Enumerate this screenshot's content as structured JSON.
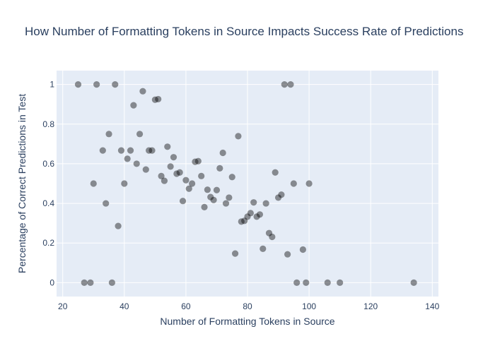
{
  "chart_data": {
    "type": "scatter",
    "title": "How Number of Formatting Tokens in Source Impacts Success Rate of Predictions",
    "xlabel": "Number of Formatting Tokens in Source",
    "ylabel": "Percentage of Correct Predictions in Test",
    "xlim": [
      18,
      142
    ],
    "ylim": [
      -0.07,
      1.07
    ],
    "xticks": [
      20,
      40,
      60,
      80,
      100,
      120,
      140
    ],
    "yticks": [
      0,
      0.2,
      0.4,
      0.6,
      0.8,
      1
    ],
    "ytick_labels": [
      "0",
      "0.2",
      "0.4",
      "0.6",
      "0.8",
      "1"
    ],
    "grid": true,
    "legend": "none",
    "colors": {
      "plot_background": "#e5ecf6",
      "grid": "#ffffff",
      "marker": "#000000",
      "text": "#2a3f5f"
    },
    "marker_opacity": 0.42,
    "points": [
      [
        25,
        1.0
      ],
      [
        27,
        0.0
      ],
      [
        29,
        0.0
      ],
      [
        30,
        0.5
      ],
      [
        31,
        1.0
      ],
      [
        33,
        0.667
      ],
      [
        34,
        0.4
      ],
      [
        35,
        0.75
      ],
      [
        36,
        0.0
      ],
      [
        37,
        1.0
      ],
      [
        38,
        0.286
      ],
      [
        39,
        0.667
      ],
      [
        40,
        0.5
      ],
      [
        41,
        0.625
      ],
      [
        42,
        0.667
      ],
      [
        43,
        0.895
      ],
      [
        44,
        0.6
      ],
      [
        45,
        0.75
      ],
      [
        46,
        0.966
      ],
      [
        47,
        0.571
      ],
      [
        48,
        0.667
      ],
      [
        49,
        0.667
      ],
      [
        50,
        0.923
      ],
      [
        51,
        0.926
      ],
      [
        52,
        0.538
      ],
      [
        53,
        0.514
      ],
      [
        54,
        0.686
      ],
      [
        55,
        0.586
      ],
      [
        56,
        0.633
      ],
      [
        57,
        0.55
      ],
      [
        58,
        0.556
      ],
      [
        59,
        0.412
      ],
      [
        60,
        0.517
      ],
      [
        61,
        0.474
      ],
      [
        62,
        0.5
      ],
      [
        63,
        0.61
      ],
      [
        64,
        0.613
      ],
      [
        65,
        0.538
      ],
      [
        66,
        0.381
      ],
      [
        67,
        0.469
      ],
      [
        68,
        0.432
      ],
      [
        69,
        0.417
      ],
      [
        70,
        0.467
      ],
      [
        71,
        0.577
      ],
      [
        72,
        0.655
      ],
      [
        73,
        0.4
      ],
      [
        74,
        0.429
      ],
      [
        75,
        0.533
      ],
      [
        76,
        0.147
      ],
      [
        77,
        0.739
      ],
      [
        78,
        0.308
      ],
      [
        79,
        0.312
      ],
      [
        80,
        0.333
      ],
      [
        81,
        0.351
      ],
      [
        82,
        0.405
      ],
      [
        83,
        0.333
      ],
      [
        84,
        0.344
      ],
      [
        85,
        0.171
      ],
      [
        86,
        0.4
      ],
      [
        87,
        0.25
      ],
      [
        88,
        0.231
      ],
      [
        89,
        0.556
      ],
      [
        90,
        0.429
      ],
      [
        91,
        0.444
      ],
      [
        92,
        1.0
      ],
      [
        93,
        0.143
      ],
      [
        94,
        1.0
      ],
      [
        95,
        0.5
      ],
      [
        96,
        0.0
      ],
      [
        98,
        0.167
      ],
      [
        99,
        0.0
      ],
      [
        100,
        0.5
      ],
      [
        106,
        0.0
      ],
      [
        110,
        0.0
      ],
      [
        134,
        0.0
      ]
    ]
  }
}
